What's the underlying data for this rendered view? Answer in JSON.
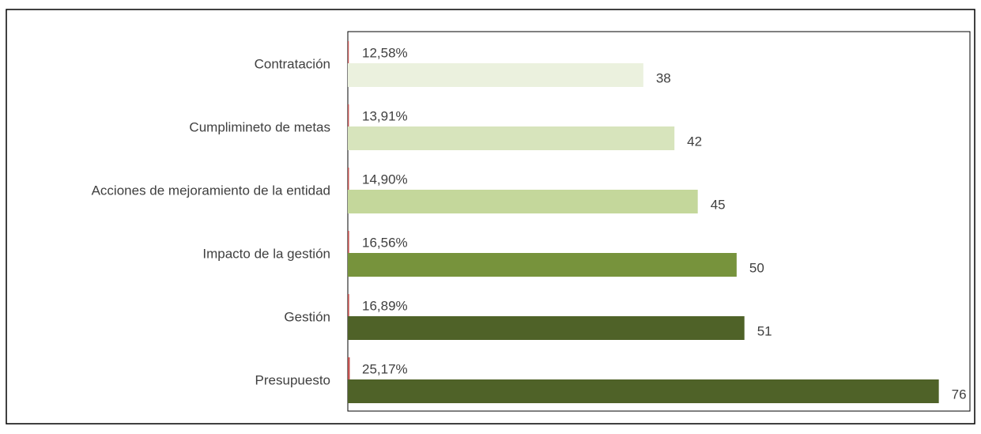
{
  "chart_data": {
    "type": "bar",
    "orientation": "horizontal",
    "categories": [
      "Contratación",
      "Cumplimineto de metas",
      "Acciones de mejoramiento de la entidad",
      "Impacto de la gestión",
      "Gestión",
      "Presupuesto"
    ],
    "series": [
      {
        "color": "#c0504d",
        "values": [
          0.1258,
          0.1391,
          0.149,
          0.1656,
          0.1689,
          0.2517
        ],
        "value_labels": [
          "12,58%",
          "13,91%",
          "14,90%",
          "16,56%",
          "16,89%",
          "25,17%"
        ]
      },
      {
        "colors": [
          "#ebf1de",
          "#d7e4bc",
          "#c4d79b",
          "#77933c",
          "#4f6228",
          "#4f6228"
        ],
        "values": [
          38,
          42,
          45,
          50,
          51,
          76
        ]
      }
    ],
    "xlim": [
      0,
      80
    ]
  }
}
